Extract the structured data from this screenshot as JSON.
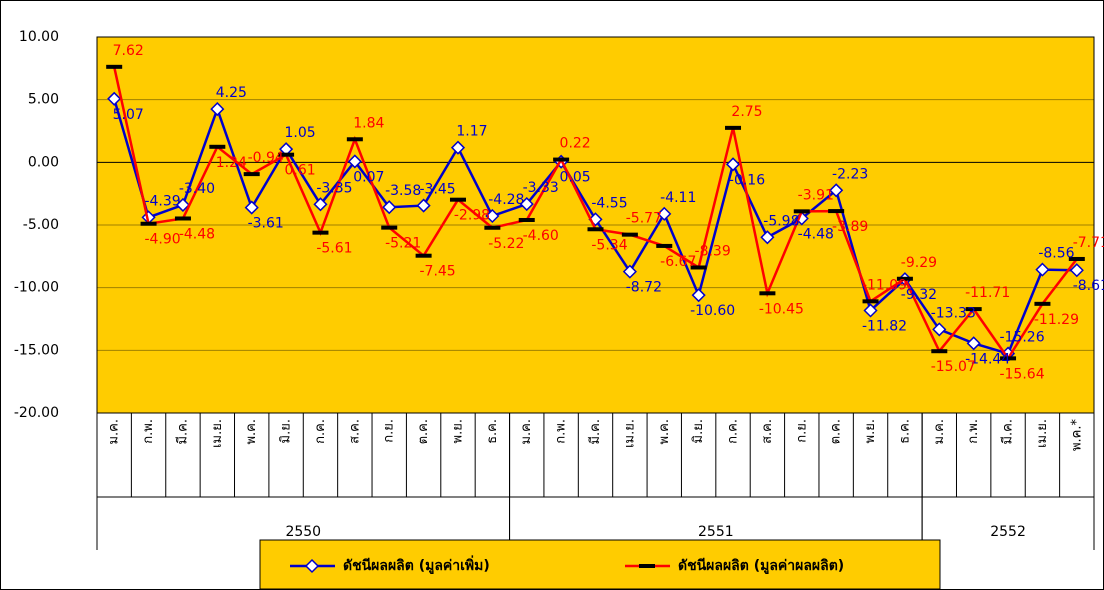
{
  "chart_data": {
    "type": "line",
    "categories": [
      "ม.ค.",
      "ก.พ.",
      "มี.ค.",
      "เม.ย.",
      "พ.ค.",
      "มิ.ย.",
      "ก.ค.",
      "ส.ค.",
      "ก.ย.",
      "ต.ค.",
      "พ.ย.",
      "ธ.ค.",
      "ม.ค.",
      "ก.พ.",
      "มี.ค.",
      "เม.ย.",
      "พ.ค.",
      "มิ.ย.",
      "ก.ค.",
      "ส.ค.",
      "ก.ย.",
      "ต.ค.",
      "พ.ย.",
      "ธ.ค.",
      "ม.ค.",
      "ก.พ.",
      "มี.ค.",
      "เม.ย.",
      "พ.ค.*"
    ],
    "groups": [
      {
        "name": "2550",
        "count": 12
      },
      {
        "name": "2551",
        "count": 12
      },
      {
        "name": "2552",
        "count": 5
      }
    ],
    "series": [
      {
        "name": "ดัชนีผลผลิต (มูลค่าเพิ่ม)",
        "color": "#0000cc",
        "marker": "diamond",
        "values": [
          5.07,
          -4.39,
          -3.4,
          4.25,
          -3.61,
          1.05,
          -3.35,
          0.07,
          -3.58,
          -3.45,
          1.17,
          -4.28,
          -3.33,
          0.05,
          -4.55,
          -8.72,
          -4.11,
          -10.6,
          -0.16,
          -5.98,
          -4.48,
          -2.23,
          -11.82,
          -9.32,
          -13.33,
          -14.44,
          -15.26,
          -8.56,
          -8.61
        ],
        "value_labels": [
          "5.07",
          "-4.39",
          "-3.40",
          "4.25",
          "-3.61",
          "1.05",
          "-3.35",
          "0.07",
          "-3.58",
          "-3.45",
          "1.17",
          "-4.28",
          "-3.33",
          "0.05",
          "-4.55",
          "-8.72",
          "-4.11",
          "-10.60",
          "-0.16",
          "-5.98",
          "-4.48",
          "-2.23",
          "-11.82",
          "-9.32",
          "-13.33",
          "-14.44",
          "-15.26",
          "-8.56",
          "-8.61"
        ]
      },
      {
        "name": "ดัชนีผลผลิต (มูลค่าผลผลิต)",
        "color": "#ff0000",
        "marker": "dash",
        "values": [
          7.62,
          -4.9,
          -4.48,
          1.24,
          -0.94,
          0.61,
          -5.61,
          1.84,
          -5.21,
          -7.45,
          -2.98,
          -5.22,
          -4.6,
          0.22,
          -5.34,
          -5.77,
          -6.67,
          -8.39,
          2.75,
          -10.45,
          -3.91,
          -3.89,
          -11.09,
          -9.29,
          -15.07,
          -11.71,
          -15.64,
          -11.29,
          -7.71
        ],
        "value_labels": [
          "7.62",
          "-4.90",
          "-4.48",
          "1.24",
          "-0.94",
          "0.61",
          "-5.61",
          "1.84",
          "-5.21",
          "-7.45",
          "-2.98",
          "-5.22",
          "-4.60",
          "0.22",
          "-5.34",
          "-5.77",
          "-6.67",
          "-8.39",
          "2.75",
          "-10.45",
          "-3.91",
          "-3.89",
          "-11.09",
          "-9.29",
          "-15.07",
          "-11.71",
          "-15.64",
          "-11.29",
          "-7.71"
        ]
      }
    ],
    "ylim": [
      -20,
      10
    ],
    "yticks": [
      {
        "value": -20,
        "label": "-20.00"
      },
      {
        "value": -15,
        "label": "-15.00"
      },
      {
        "value": -10,
        "label": "-10.00"
      },
      {
        "value": -5,
        "label": "-5.00"
      },
      {
        "value": 0,
        "label": "0.00"
      },
      {
        "value": 5,
        "label": "5.00"
      },
      {
        "value": 10,
        "label": "10.00"
      }
    ],
    "grid": true,
    "background": "#ffcc00",
    "legend": "bottom"
  }
}
